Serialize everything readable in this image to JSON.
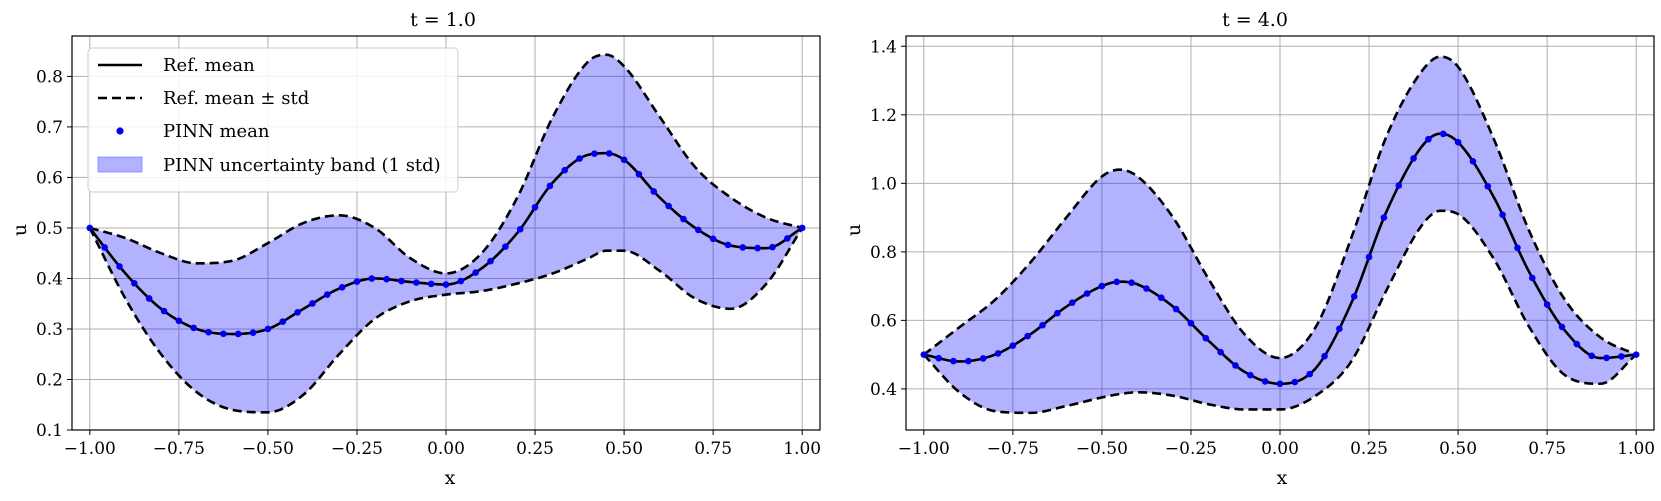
{
  "chart_data": [
    {
      "type": "line",
      "title": "t = 1.0",
      "xlabel": "x",
      "ylabel": "u",
      "xlim": [
        -1.05,
        1.05
      ],
      "ylim": [
        0.1,
        0.88
      ],
      "xticks": [
        -1.0,
        -0.75,
        -0.5,
        -0.25,
        0.0,
        0.25,
        0.5,
        0.75,
        1.0
      ],
      "xtick_labels": [
        "−1.00",
        "−0.75",
        "−0.50",
        "−0.25",
        "0.00",
        "0.25",
        "0.50",
        "0.75",
        "1.00"
      ],
      "yticks": [
        0.1,
        0.2,
        0.3,
        0.4,
        0.5,
        0.6,
        0.7,
        0.8
      ],
      "ytick_labels": [
        "0.1",
        "0.2",
        "0.3",
        "0.4",
        "0.5",
        "0.6",
        "0.7",
        "0.8"
      ],
      "grid": true,
      "legend_position": "top-left",
      "legend": [
        "Ref. mean",
        "Ref. mean ± std",
        "PINN mean",
        "PINN uncertainty band (1 std)"
      ],
      "series": [
        {
          "name": "Ref. mean",
          "x": [
            -1.0,
            -0.9,
            -0.8,
            -0.7,
            -0.6,
            -0.5,
            -0.4,
            -0.3,
            -0.2,
            -0.1,
            0.0,
            0.1,
            0.2,
            0.3,
            0.4,
            0.45,
            0.5,
            0.6,
            0.7,
            0.8,
            0.9,
            1.0
          ],
          "y": [
            0.5,
            0.41,
            0.34,
            0.3,
            0.29,
            0.3,
            0.34,
            0.38,
            0.4,
            0.393,
            0.388,
            0.42,
            0.49,
            0.59,
            0.645,
            0.648,
            0.635,
            0.56,
            0.5,
            0.465,
            0.46,
            0.5
          ]
        },
        {
          "name": "Ref. mean + std",
          "x": [
            -1.0,
            -0.9,
            -0.8,
            -0.7,
            -0.6,
            -0.5,
            -0.4,
            -0.3,
            -0.2,
            -0.1,
            0.0,
            0.1,
            0.2,
            0.3,
            0.4,
            0.45,
            0.5,
            0.6,
            0.7,
            0.8,
            0.9,
            1.0
          ],
          "y": [
            0.5,
            0.48,
            0.45,
            0.43,
            0.435,
            0.47,
            0.51,
            0.525,
            0.5,
            0.44,
            0.41,
            0.45,
            0.56,
            0.72,
            0.83,
            0.843,
            0.82,
            0.72,
            0.62,
            0.56,
            0.52,
            0.5
          ]
        },
        {
          "name": "Ref. mean − std",
          "x": [
            -1.0,
            -0.9,
            -0.8,
            -0.7,
            -0.6,
            -0.5,
            -0.4,
            -0.3,
            -0.2,
            -0.1,
            0.0,
            0.1,
            0.2,
            0.3,
            0.4,
            0.45,
            0.5,
            0.6,
            0.7,
            0.8,
            0.9,
            1.0
          ],
          "y": [
            0.5,
            0.36,
            0.25,
            0.175,
            0.14,
            0.135,
            0.17,
            0.25,
            0.32,
            0.355,
            0.368,
            0.375,
            0.39,
            0.41,
            0.44,
            0.455,
            0.455,
            0.415,
            0.36,
            0.34,
            0.39,
            0.5
          ]
        },
        {
          "name": "PINN mean",
          "x": [
            -1.0,
            -0.9,
            -0.8,
            -0.7,
            -0.6,
            -0.5,
            -0.4,
            -0.3,
            -0.2,
            -0.1,
            0.0,
            0.1,
            0.2,
            0.3,
            0.4,
            0.45,
            0.5,
            0.6,
            0.7,
            0.8,
            0.9,
            1.0
          ],
          "y": [
            0.5,
            0.41,
            0.34,
            0.3,
            0.29,
            0.3,
            0.34,
            0.38,
            0.4,
            0.393,
            0.388,
            0.42,
            0.49,
            0.59,
            0.645,
            0.648,
            0.635,
            0.56,
            0.5,
            0.465,
            0.46,
            0.5
          ]
        }
      ]
    },
    {
      "type": "line",
      "title": "t = 4.0",
      "xlabel": "x",
      "ylabel": "u",
      "xlim": [
        -1.05,
        1.05
      ],
      "ylim": [
        0.28,
        1.43
      ],
      "xticks": [
        -1.0,
        -0.75,
        -0.5,
        -0.25,
        0.0,
        0.25,
        0.5,
        0.75,
        1.0
      ],
      "xtick_labels": [
        "−1.00",
        "−0.75",
        "−0.50",
        "−0.25",
        "0.00",
        "0.25",
        "0.50",
        "0.75",
        "1.00"
      ],
      "yticks": [
        0.4,
        0.6,
        0.8,
        1.0,
        1.2,
        1.4
      ],
      "ytick_labels": [
        "0.4",
        "0.6",
        "0.8",
        "1.0",
        "1.2",
        "1.4"
      ],
      "grid": true,
      "series": [
        {
          "name": "Ref. mean",
          "x": [
            -1.0,
            -0.9,
            -0.8,
            -0.7,
            -0.6,
            -0.5,
            -0.45,
            -0.4,
            -0.3,
            -0.2,
            -0.1,
            0.0,
            0.1,
            0.2,
            0.3,
            0.4,
            0.45,
            0.5,
            0.6,
            0.7,
            0.8,
            0.9,
            1.0
          ],
          "y": [
            0.5,
            0.48,
            0.5,
            0.56,
            0.64,
            0.7,
            0.713,
            0.705,
            0.64,
            0.54,
            0.45,
            0.415,
            0.46,
            0.65,
            0.92,
            1.11,
            1.145,
            1.12,
            0.96,
            0.74,
            0.57,
            0.49,
            0.5
          ]
        },
        {
          "name": "Ref. mean + std",
          "x": [
            -1.0,
            -0.9,
            -0.8,
            -0.7,
            -0.6,
            -0.5,
            -0.45,
            -0.4,
            -0.3,
            -0.2,
            -0.1,
            0.0,
            0.1,
            0.2,
            0.3,
            0.4,
            0.45,
            0.5,
            0.6,
            0.7,
            0.8,
            0.9,
            1.0
          ],
          "y": [
            0.5,
            0.58,
            0.66,
            0.77,
            0.9,
            1.02,
            1.04,
            1.02,
            0.9,
            0.72,
            0.56,
            0.49,
            0.58,
            0.84,
            1.14,
            1.33,
            1.37,
            1.34,
            1.13,
            0.86,
            0.66,
            0.55,
            0.5
          ]
        },
        {
          "name": "Ref. mean − std",
          "x": [
            -1.0,
            -0.9,
            -0.8,
            -0.7,
            -0.6,
            -0.5,
            -0.45,
            -0.4,
            -0.3,
            -0.2,
            -0.1,
            0.0,
            0.1,
            0.2,
            0.3,
            0.4,
            0.45,
            0.5,
            0.6,
            0.7,
            0.8,
            0.9,
            1.0
          ],
          "y": [
            0.5,
            0.39,
            0.335,
            0.33,
            0.35,
            0.375,
            0.385,
            0.39,
            0.38,
            0.355,
            0.34,
            0.34,
            0.38,
            0.48,
            0.69,
            0.88,
            0.92,
            0.91,
            0.78,
            0.58,
            0.44,
            0.415,
            0.5
          ]
        },
        {
          "name": "PINN mean",
          "x": [
            -1.0,
            -0.9,
            -0.8,
            -0.7,
            -0.6,
            -0.5,
            -0.45,
            -0.4,
            -0.3,
            -0.2,
            -0.1,
            0.0,
            0.1,
            0.2,
            0.3,
            0.4,
            0.45,
            0.5,
            0.6,
            0.7,
            0.8,
            0.9,
            1.0
          ],
          "y": [
            0.5,
            0.48,
            0.5,
            0.56,
            0.64,
            0.7,
            0.713,
            0.705,
            0.64,
            0.54,
            0.45,
            0.415,
            0.46,
            0.65,
            0.92,
            1.11,
            1.145,
            1.12,
            0.96,
            0.74,
            0.57,
            0.49,
            0.5
          ]
        }
      ]
    }
  ],
  "colors": {
    "band": "#0000ff",
    "pinn_dot": "#0000ee",
    "reference": "#000000",
    "grid": "#b0b0b0"
  }
}
